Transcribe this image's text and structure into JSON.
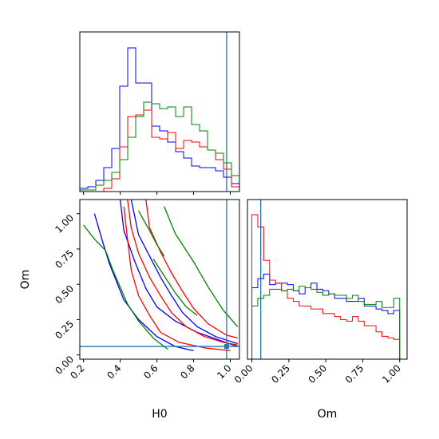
{
  "chart_data": [
    {
      "type": "histogram",
      "panel": "H0 marginal",
      "xlabel": "",
      "ylabel": "",
      "xlim": [
        0.18,
        1.05
      ],
      "truth": 0.98,
      "truth_color": "#1f77b4",
      "bin_edges": [
        0.18,
        0.2235,
        0.267,
        0.3105,
        0.354,
        0.3975,
        0.441,
        0.4845,
        0.528,
        0.5715,
        0.615,
        0.6585,
        0.702,
        0.7455,
        0.789,
        0.8325,
        0.876,
        0.9195,
        0.963,
        1.0065,
        1.05
      ],
      "series": [
        {
          "color": "#0000ff",
          "values": [
            0.02,
            0.03,
            0.07,
            0.15,
            0.27,
            0.66,
            0.9,
            0.68,
            0.68,
            0.41,
            0.38,
            0.31,
            0.25,
            0.21,
            0.16,
            0.15,
            0.15,
            0.13,
            0.09,
            0.05
          ]
        },
        {
          "color": "#ff0000",
          "values": [
            0.0,
            0.0,
            0.0,
            0.02,
            0.08,
            0.28,
            0.47,
            0.48,
            0.51,
            0.34,
            0.33,
            0.37,
            0.27,
            0.32,
            0.31,
            0.28,
            0.26,
            0.2,
            0.14,
            0.03
          ]
        },
        {
          "color": "#008000",
          "values": [
            0.01,
            0.01,
            0.04,
            0.07,
            0.12,
            0.2,
            0.34,
            0.47,
            0.56,
            0.55,
            0.52,
            0.53,
            0.47,
            0.53,
            0.42,
            0.38,
            0.26,
            0.24,
            0.18,
            0.1
          ]
        }
      ]
    },
    {
      "type": "contour",
      "panel": "H0 vs Om",
      "xlabel": "H0",
      "ylabel": "Om",
      "xlim": [
        0.18,
        1.05
      ],
      "ylim": [
        -0.03,
        1.1
      ],
      "xticks": [
        "0.2",
        "0.4",
        "0.6",
        "0.8",
        "1.0"
      ],
      "yticks": [
        "0.00",
        "0.25",
        "0.50",
        "0.75",
        "1.00"
      ],
      "truth": {
        "x": 0.98,
        "y": 0.06,
        "color": "#1f77b4"
      },
      "series": [
        {
          "color": "#0000ff",
          "contours": [
            [
              [
                0.46,
                1.1
              ],
              [
                0.5,
                0.85
              ],
              [
                0.56,
                0.7
              ],
              [
                0.62,
                0.55
              ],
              [
                0.68,
                0.42
              ],
              [
                0.74,
                0.3
              ],
              [
                0.82,
                0.2
              ],
              [
                0.92,
                0.13
              ],
              [
                1.04,
                0.08
              ]
            ],
            [
              [
                0.4,
                1.1
              ],
              [
                0.42,
                0.88
              ],
              [
                0.48,
                0.66
              ],
              [
                0.54,
                0.47
              ],
              [
                0.6,
                0.34
              ],
              [
                0.7,
                0.24
              ],
              [
                0.82,
                0.16
              ],
              [
                0.95,
                0.1
              ],
              [
                1.04,
                0.06
              ]
            ],
            [
              [
                0.26,
                1.0
              ],
              [
                0.3,
                0.82
              ],
              [
                0.34,
                0.65
              ],
              [
                0.38,
                0.52
              ],
              [
                0.42,
                0.39
              ],
              [
                0.5,
                0.25
              ],
              [
                0.6,
                0.13
              ],
              [
                0.7,
                0.06
              ],
              [
                0.8,
                0.03
              ]
            ]
          ]
        },
        {
          "color": "#ff0000",
          "contours": [
            [
              [
                0.54,
                1.1
              ],
              [
                0.56,
                0.9
              ],
              [
                0.62,
                0.73
              ],
              [
                0.68,
                0.58
              ],
              [
                0.74,
                0.45
              ],
              [
                0.8,
                0.33
              ],
              [
                0.88,
                0.22
              ],
              [
                0.98,
                0.14
              ],
              [
                1.04,
                0.12
              ]
            ],
            [
              [
                0.44,
                1.1
              ],
              [
                0.46,
                0.9
              ],
              [
                0.5,
                0.72
              ],
              [
                0.56,
                0.55
              ],
              [
                0.62,
                0.42
              ],
              [
                0.68,
                0.3
              ],
              [
                0.76,
                0.2
              ],
              [
                0.86,
                0.13
              ],
              [
                0.96,
                0.09
              ],
              [
                1.04,
                0.07
              ]
            ],
            [
              [
                0.42,
                1.05
              ],
              [
                0.44,
                0.82
              ],
              [
                0.46,
                0.6
              ],
              [
                0.5,
                0.42
              ],
              [
                0.56,
                0.28
              ],
              [
                0.62,
                0.16
              ],
              [
                0.72,
                0.09
              ],
              [
                0.86,
                0.05
              ],
              [
                1.0,
                0.03
              ]
            ]
          ]
        },
        {
          "color": "#008000",
          "contours": [
            [
              [
                0.64,
                1.05
              ],
              [
                0.7,
                0.86
              ],
              [
                0.8,
                0.66
              ],
              [
                0.88,
                0.48
              ],
              [
                0.96,
                0.32
              ],
              [
                1.04,
                0.2
              ]
            ],
            [
              [
                0.2,
                0.92
              ],
              [
                0.26,
                0.82
              ],
              [
                0.32,
                0.74
              ],
              [
                0.36,
                0.6
              ],
              [
                0.4,
                0.48
              ],
              [
                0.44,
                0.36
              ],
              [
                0.5,
                0.24
              ],
              [
                0.58,
                0.12
              ],
              [
                0.66,
                0.04
              ]
            ],
            [
              [
                0.58,
                0.68
              ],
              [
                0.64,
                0.56
              ],
              [
                0.7,
                0.44
              ],
              [
                0.76,
                0.34
              ],
              [
                0.82,
                0.28
              ]
            ],
            [
              [
                0.5,
                1.02
              ],
              [
                0.56,
                0.88
              ],
              [
                0.6,
                0.78
              ],
              [
                0.64,
                0.7
              ]
            ]
          ]
        }
      ]
    },
    {
      "type": "histogram",
      "panel": "Om marginal",
      "xlabel": "Om",
      "ylabel": "",
      "xlim": [
        -0.03,
        1.05
      ],
      "xticks": [
        "0.00",
        "0.25",
        "0.50",
        "0.75",
        "1.00"
      ],
      "truth": 0.06,
      "truth_color": "#1f77b4",
      "bin_edges": [
        0.0,
        0.04,
        0.08,
        0.12,
        0.16,
        0.2,
        0.24,
        0.28,
        0.32,
        0.36,
        0.4,
        0.44,
        0.48,
        0.52,
        0.56,
        0.6,
        0.64,
        0.68,
        0.72,
        0.76,
        0.8,
        0.84,
        0.88,
        0.92,
        0.96,
        1.0
      ],
      "series": [
        {
          "color": "#0000ff",
          "values": [
            0.47,
            0.53,
            0.56,
            0.49,
            0.5,
            0.5,
            0.49,
            0.45,
            0.43,
            0.47,
            0.5,
            0.46,
            0.45,
            0.43,
            0.4,
            0.4,
            0.38,
            0.38,
            0.4,
            0.35,
            0.35,
            0.33,
            0.32,
            0.3,
            0.32
          ]
        },
        {
          "color": "#ff0000",
          "values": [
            0.95,
            0.87,
            0.65,
            0.52,
            0.5,
            0.45,
            0.4,
            0.38,
            0.35,
            0.35,
            0.33,
            0.33,
            0.3,
            0.3,
            0.28,
            0.26,
            0.25,
            0.28,
            0.25,
            0.22,
            0.22,
            0.18,
            0.15,
            0.14,
            0.13
          ]
        },
        {
          "color": "#008000",
          "values": [
            0.35,
            0.4,
            0.42,
            0.46,
            0.46,
            0.45,
            0.46,
            0.45,
            0.48,
            0.47,
            0.46,
            0.44,
            0.42,
            0.43,
            0.42,
            0.42,
            0.4,
            0.42,
            0.38,
            0.36,
            0.36,
            0.38,
            0.34,
            0.34,
            0.4
          ]
        }
      ]
    }
  ]
}
